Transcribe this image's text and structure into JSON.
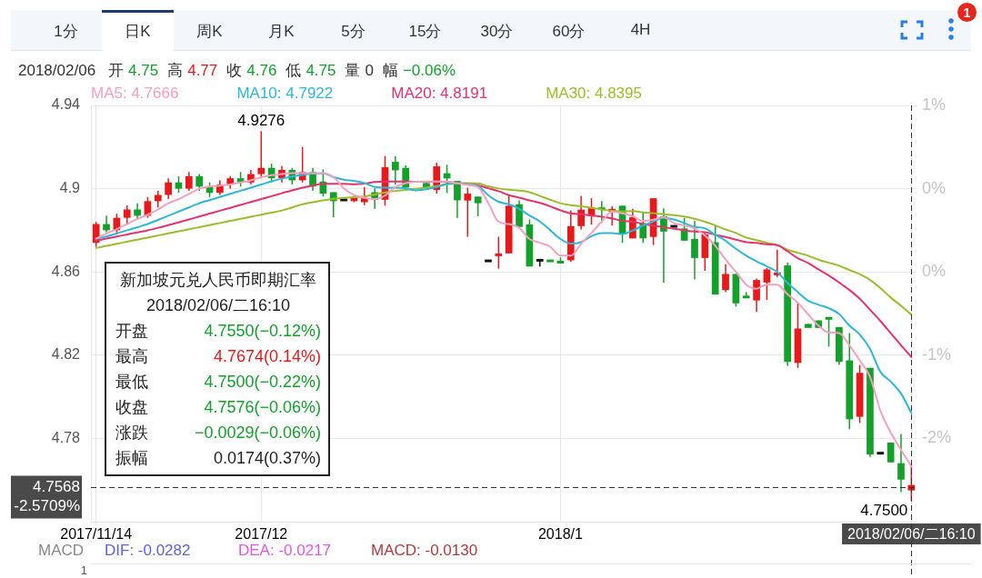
{
  "chart_data": {
    "type": "candlestick",
    "title": "新加坡元兑人民币即期汇率",
    "subtitle": "2018/02/06/二16:10",
    "categories": [
      "2017/11/14",
      null,
      null,
      null,
      null,
      null,
      null,
      null,
      null,
      null,
      null,
      null,
      null,
      null,
      null,
      null,
      "2017/12",
      null,
      null,
      null,
      null,
      null,
      null,
      null,
      null,
      null,
      null,
      null,
      null,
      null,
      null,
      null,
      null,
      null,
      null,
      null,
      null,
      null,
      null,
      null,
      null,
      null,
      null,
      null,
      null,
      "2018/1",
      null,
      null,
      null,
      null,
      null,
      null,
      null,
      null,
      null,
      null,
      null,
      null,
      null,
      null,
      null,
      null,
      null,
      null,
      null,
      null,
      null,
      null,
      null,
      null,
      null,
      null,
      null,
      null,
      null,
      null,
      null,
      null,
      null,
      "2018/02/06/二16:10"
    ],
    "ohlc": [
      [
        4.874,
        4.884,
        4.872,
        4.883
      ],
      [
        4.883,
        4.887,
        4.879,
        4.88
      ],
      [
        4.88,
        4.888,
        4.878,
        4.886
      ],
      [
        4.886,
        4.892,
        4.883,
        4.89
      ],
      [
        4.89,
        4.893,
        4.885,
        4.887
      ],
      [
        4.887,
        4.896,
        4.886,
        4.894
      ],
      [
        4.894,
        4.899,
        4.891,
        4.897
      ],
      [
        4.897,
        4.905,
        4.895,
        4.903
      ],
      [
        4.903,
        4.906,
        4.898,
        4.9
      ],
      [
        4.9,
        4.908,
        4.899,
        4.906
      ],
      [
        4.906,
        4.907,
        4.899,
        4.901
      ],
      [
        4.901,
        4.903,
        4.896,
        4.898
      ],
      [
        4.898,
        4.904,
        4.897,
        4.902
      ],
      [
        4.902,
        4.906,
        4.9,
        4.905
      ],
      [
        4.905,
        4.908,
        4.901,
        4.903
      ],
      [
        4.903,
        4.909,
        4.902,
        4.907
      ],
      [
        4.907,
        4.9276,
        4.905,
        4.91
      ],
      [
        4.91,
        4.912,
        4.903,
        4.905
      ],
      [
        4.905,
        4.911,
        4.903,
        4.909
      ],
      [
        4.909,
        4.91,
        4.902,
        4.904
      ],
      [
        4.904,
        4.92,
        4.903,
        4.908
      ],
      [
        4.908,
        4.91,
        4.899,
        4.901
      ],
      [
        4.9034,
        4.9093,
        4.8962,
        4.8976
      ],
      [
        4.8983,
        4.8983,
        4.8863,
        4.894
      ],
      [
        4.8946,
        4.8946,
        4.8946,
        4.8946
      ],
      [
        4.894,
        4.8965,
        4.8935,
        4.8957
      ],
      [
        4.8935,
        4.9008,
        4.8921,
        4.8954
      ],
      [
        4.8983,
        4.9002,
        4.8903,
        4.8947
      ],
      [
        4.8947,
        4.9157,
        4.8918,
        4.9103
      ],
      [
        4.9129,
        4.9157,
        4.902,
        4.9088
      ],
      [
        4.91,
        4.9112,
        4.9002,
        4.9005
      ],
      null,
      [
        4.9027,
        4.9034,
        4.8998,
        4.9005
      ],
      [
        4.8994,
        4.9125,
        4.8976,
        4.9107
      ],
      [
        4.9074,
        4.9115,
        4.8979,
        4.9049
      ],
      [
        4.9037,
        4.9037,
        4.886,
        4.8944
      ],
      [
        4.8943,
        4.9005,
        4.8769,
        4.8976
      ],
      [
        4.8962,
        4.8962,
        4.8867,
        4.893
      ],
      [
        4.8653,
        4.8653,
        4.8653,
        4.8653
      ],
      [
        4.8676,
        4.8769,
        4.8616,
        4.8688
      ],
      [
        4.8689,
        4.8969,
        4.8689,
        4.8918
      ],
      [
        4.8925,
        4.8944,
        4.8816,
        4.8816
      ],
      [
        4.8828,
        4.8852,
        4.8626,
        4.8626
      ],
      [
        4.8656,
        4.8656,
        4.8626,
        4.8656
      ],
      [
        4.8656,
        4.8656,
        4.865,
        4.865
      ],
      [
        4.8653,
        4.867,
        4.8641,
        4.8641
      ],
      [
        4.8656,
        4.8896,
        4.8648,
        4.882
      ],
      [
        4.882,
        4.8965,
        4.8804,
        4.8899
      ],
      [
        4.8871,
        4.8954,
        4.8828,
        4.8906
      ],
      [
        4.8908,
        4.894,
        4.8838,
        4.8899
      ],
      [
        4.8889,
        4.8915,
        4.8823,
        4.8903
      ],
      [
        4.8918,
        4.8918,
        4.874,
        4.878
      ],
      [
        4.8761,
        4.8903,
        4.8761,
        4.8863
      ],
      [
        4.8834,
        4.8889,
        4.874,
        4.8761
      ],
      [
        4.8768,
        4.8954,
        4.8729,
        4.8954
      ],
      [
        4.8867,
        4.8906,
        4.8549,
        4.8794
      ],
      [
        4.8819,
        4.8819,
        4.8819,
        4.8819
      ],
      [
        4.8809,
        4.886,
        4.875,
        4.875
      ],
      [
        4.8758,
        4.8845,
        4.8564,
        4.8667
      ],
      [
        4.8667,
        4.879,
        4.8605,
        4.878
      ],
      [
        4.8743,
        4.8823,
        4.8491,
        4.8491
      ],
      [
        4.8513,
        4.8637,
        4.8503,
        4.859
      ],
      [
        4.859,
        4.859,
        4.8434,
        4.8449
      ],
      [
        4.8484,
        4.8503,
        4.8475,
        4.8475
      ],
      [
        4.8463,
        4.8568,
        4.8408,
        4.8561
      ],
      [
        4.8549,
        4.8619,
        4.8466,
        4.8612
      ],
      [
        4.8586,
        4.8707,
        4.8576,
        4.8595
      ],
      [
        4.8631,
        4.8644,
        4.8149,
        4.8168
      ],
      [
        4.8163,
        4.8455,
        4.8139,
        4.8328
      ],
      [
        4.835,
        4.835,
        4.8331,
        4.8331
      ],
      [
        4.8367,
        4.8367,
        4.8331,
        4.8331
      ],
      [
        4.8382,
        4.8382,
        4.8241,
        4.8372
      ],
      [
        4.8335,
        4.8335,
        4.8153,
        4.8168
      ],
      [
        4.8175,
        4.8306,
        4.7844,
        4.7892
      ],
      [
        4.7904,
        4.8153,
        4.7874,
        4.8115
      ],
      [
        4.8139,
        4.8139,
        4.7711,
        4.7723
      ],
      [
        4.7729,
        4.7729,
        4.7729,
        4.7729
      ],
      [
        4.778,
        4.778,
        4.7685,
        4.7685
      ],
      [
        4.7681,
        4.7821,
        4.7542,
        4.7602
      ],
      [
        4.755,
        4.7674,
        4.75,
        4.7576
      ]
    ],
    "colors": [
      "#e8191b",
      "#13a02b",
      "#e8191b",
      "#e8191b",
      "#13a02b",
      "#e8191b",
      "#e8191b",
      "#e8191b",
      "#13a02b",
      "#e8191b",
      "#13a02b",
      "#13a02b",
      "#e8191b",
      "#e8191b",
      "#13a02b",
      "#e8191b",
      "#e8191b",
      "#13a02b",
      "#e8191b",
      "#13a02b",
      "#e8191b",
      "#13a02b",
      "#13a02b",
      "#13a02b",
      "#111111",
      "#e8191b",
      "#e8191b",
      "#13a02b",
      "#e8191b",
      "#13a02b",
      "#13a02b",
      null,
      "#13a02b",
      "#e8191b",
      "#13a02b",
      "#13a02b",
      "#e8191b",
      "#13a02b",
      "#111111",
      "#e8191b",
      "#e8191b",
      "#13a02b",
      "#13a02b",
      "#111111",
      "#13a02b",
      "#13a02b",
      "#e8191b",
      "#e8191b",
      "#e8191b",
      "#13a02b",
      "#e8191b",
      "#13a02b",
      "#e8191b",
      "#13a02b",
      "#e8191b",
      "#13a02b",
      "#111111",
      "#13a02b",
      "#13a02b",
      "#e8191b",
      "#13a02b",
      "#e8191b",
      "#13a02b",
      "#13a02b",
      "#e8191b",
      "#e8191b",
      "#e8191b",
      "#13a02b",
      "#e8191b",
      "#13a02b",
      "#13a02b",
      "#13a02b",
      "#13a02b",
      "#13a02b",
      "#e8191b",
      "#13a02b",
      "#111111",
      "#13a02b",
      "#13a02b",
      "#e8191b"
    ],
    "series": [
      {
        "name": "MA5: 4.7666",
        "type": "line",
        "color": "#f4a1be",
        "values": [
          4.876,
          4.8785,
          4.8805,
          4.883,
          4.8855,
          4.8875,
          4.89,
          4.893,
          4.895,
          4.8975,
          4.9,
          4.901,
          4.9015,
          4.902,
          4.903,
          4.904,
          4.9055,
          4.9065,
          4.907,
          4.9075,
          4.9075,
          4.9075,
          4.9075,
          4.9056,
          4.9002,
          4.8969,
          4.8956,
          4.895,
          4.8967,
          4.9008,
          4.9026,
          4.9033,
          4.9034,
          4.9034,
          4.9034,
          4.9026,
          4.9018,
          4.9008,
          4.8932,
          4.8841,
          4.883,
          4.8812,
          4.8758,
          4.874,
          4.8721,
          4.8678,
          4.8678,
          4.8736,
          4.8787,
          4.8842,
          4.8889,
          4.8881,
          4.8867,
          4.8845,
          4.8851,
          4.8863,
          4.8834,
          4.8823,
          4.8809,
          4.8775,
          4.8726,
          4.8659,
          4.86,
          4.8539,
          4.8519,
          4.8539,
          4.8539,
          4.8493,
          4.8452,
          4.8396,
          4.8342,
          4.8309,
          4.8306,
          4.8248,
          4.8175,
          4.8095,
          4.7933,
          4.7828,
          4.7745,
          4.7666
        ]
      },
      {
        "name": "MA10: 4.7922",
        "type": "line",
        "color": "#2db7d8",
        "values": [
          4.876,
          4.877,
          4.8785,
          4.88,
          4.8815,
          4.883,
          4.885,
          4.887,
          4.889,
          4.891,
          4.893,
          4.8945,
          4.896,
          4.8975,
          4.899,
          4.9005,
          4.902,
          4.9035,
          4.9048,
          4.9058,
          4.9066,
          4.9072,
          4.9074,
          4.9056,
          4.9043,
          4.9037,
          4.9027,
          4.9008,
          4.9005,
          4.9005,
          4.9002,
          4.8992,
          4.8997,
          4.9008,
          4.9023,
          4.9027,
          4.902,
          4.9013,
          4.8969,
          4.8937,
          4.8925,
          4.8903,
          4.8871,
          4.8842,
          4.8801,
          4.8758,
          4.8736,
          4.8743,
          4.8772,
          4.8787,
          4.8787,
          4.8782,
          4.8799,
          4.8823,
          4.8842,
          4.886,
          4.8852,
          4.8834,
          4.8816,
          4.8809,
          4.8778,
          4.875,
          4.8711,
          4.8678,
          4.8651,
          4.8627,
          4.86,
          4.8547,
          4.8503,
          4.8462,
          4.8442,
          4.8426,
          4.8398,
          4.8342,
          4.8299,
          4.823,
          4.812,
          4.8073,
          4.8015,
          4.7922
        ]
      },
      {
        "name": "MA20: 4.8191",
        "type": "line",
        "color": "#e5336e",
        "values": [
          4.875,
          4.876,
          4.877,
          4.878,
          4.879,
          4.88,
          4.8812,
          4.8825,
          4.8838,
          4.8852,
          4.8866,
          4.888,
          4.8894,
          4.8908,
          4.8922,
          4.8936,
          4.895,
          4.8964,
          4.8978,
          4.8992,
          4.9005,
          4.9015,
          4.9023,
          4.9023,
          4.9023,
          4.9021,
          4.9024,
          4.9032,
          4.9034,
          4.9034,
          4.9034,
          4.9033,
          4.9033,
          4.9034,
          4.9032,
          4.9027,
          4.9021,
          4.9016,
          4.9002,
          4.8988,
          4.8969,
          4.8957,
          4.8944,
          4.8932,
          4.8915,
          4.8896,
          4.8881,
          4.8877,
          4.8871,
          4.8865,
          4.8857,
          4.8845,
          4.8841,
          4.8831,
          4.8822,
          4.8815,
          4.8807,
          4.88,
          4.8794,
          4.8791,
          4.8778,
          4.8768,
          4.8755,
          4.8743,
          4.8739,
          4.8733,
          4.8729,
          4.8699,
          4.8666,
          4.8643,
          4.8612,
          4.8583,
          4.8549,
          4.8513,
          4.8471,
          4.8418,
          4.8364,
          4.8306,
          4.8248,
          4.8191
        ]
      },
      {
        "name": "MA30: 4.8395",
        "type": "line",
        "color": "#9bbd2c",
        "values": [
          4.8715,
          4.8725,
          4.8735,
          4.8745,
          4.8755,
          4.8765,
          4.8775,
          4.8785,
          4.8795,
          4.8805,
          4.8815,
          4.8825,
          4.8835,
          4.8845,
          4.8855,
          4.8865,
          4.8875,
          4.8885,
          4.8895,
          4.891,
          4.8925,
          4.8935,
          4.8944,
          4.8951,
          4.8956,
          4.8959,
          4.8962,
          4.8972,
          4.8982,
          4.8989,
          4.8994,
          4.9,
          4.9005,
          4.9013,
          4.9021,
          4.9026,
          4.9027,
          4.9026,
          4.9011,
          4.9001,
          4.8995,
          4.8991,
          4.8983,
          4.8965,
          4.8947,
          4.893,
          4.8921,
          4.8915,
          4.8908,
          4.89,
          4.8893,
          4.889,
          4.8892,
          4.8886,
          4.8882,
          4.8877,
          4.8873,
          4.8866,
          4.8855,
          4.8841,
          4.8823,
          4.8804,
          4.8787,
          4.8765,
          4.8753,
          4.874,
          4.8729,
          4.8707,
          4.8692,
          4.8678,
          4.8659,
          4.8644,
          4.863,
          4.8609,
          4.8589,
          4.8561,
          4.8522,
          4.8477,
          4.8437,
          4.8395
        ]
      }
    ],
    "ylim": [
      4.74,
      4.94
    ],
    "yticks": [
      4.78,
      4.82,
      4.86,
      4.9,
      4.94
    ],
    "y2lim": [
      -2.915,
      1.181
    ],
    "y2ticks": [
      {
        "value": 1.181,
        "label": "1%"
      },
      {
        "value": 0.362,
        "label": "0%"
      },
      {
        "value": -0.457,
        "label": "0%"
      },
      {
        "value": -1.276,
        "label": "-1%"
      },
      {
        "value": -2.096,
        "label": "-2%"
      }
    ],
    "grid": true,
    "legend": "top left",
    "marker": "none",
    "ref_lines": [
      {
        "axis": "y",
        "value": 4.7568,
        "label": "4.7568",
        "line_style": "dashed",
        "color": "#333333"
      },
      {
        "axis": "x",
        "value": "2018/02/06/二16:10",
        "line_style": "dashed",
        "color": "#333333"
      }
    ],
    "annotations": [
      "1分",
      "日K",
      "周K",
      "月K",
      "5分",
      "15分",
      "30分",
      "60分",
      "4H",
      "1",
      "2018/02/06",
      "开",
      "4.75",
      "高",
      "4.77",
      "收",
      "4.76",
      "低",
      "4.75",
      "量",
      "0",
      "幅",
      "−0.06%",
      "开盘",
      "4.7550(−0.12%)",
      "最高",
      "4.7674(0.14%)",
      "最低",
      "4.7500(−0.22%)",
      "收盘",
      "4.7576(−0.06%)",
      "涨跌",
      "−0.0029(−0.06%)",
      "振幅",
      "0.0174(0.37%)",
      "MACD",
      "DIF: -0.0282",
      "DEA: -0.0217",
      "MACD: -0.0130",
      "1",
      "-2.5709%",
      {
        "text": "4.9276",
        "x": "2017/12",
        "y": 4.9276
      },
      {
        "text": "4.7500",
        "x": "2018/02/06/二16:10",
        "y": 4.75
      }
    ]
  }
}
